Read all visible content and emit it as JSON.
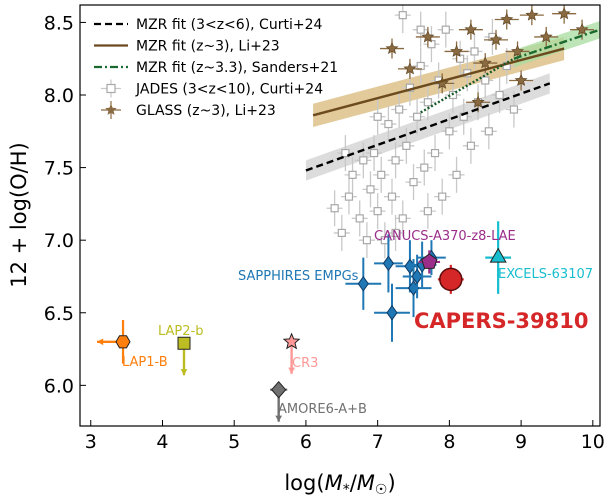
{
  "chart_data": {
    "type": "scatter",
    "xlabel": "log(M*/M☉)",
    "ylabel": "12 + log(O/H)",
    "xlim": [
      2.85,
      10.1
    ],
    "ylim": [
      5.72,
      8.62
    ],
    "xticks": [
      3,
      4,
      5,
      6,
      7,
      8,
      9,
      10
    ],
    "yticks": [
      6.0,
      6.5,
      7.0,
      7.5,
      8.0,
      8.5
    ],
    "xtick_labels": [
      "3",
      "4",
      "5",
      "6",
      "7",
      "8",
      "9",
      "10"
    ],
    "ytick_labels": [
      "6.0",
      "6.5",
      "7.0",
      "7.5",
      "8.0",
      "8.5"
    ],
    "grid": false,
    "legend_position": "top-left",
    "legend": [
      {
        "label": "MZR fit (3<z<6), Curti+24",
        "style": "dashed",
        "color": "#000000"
      },
      {
        "label": "MZR fit (z~3), Li+23",
        "style": "solid",
        "color": "#6b4a1e"
      },
      {
        "label": "MZR fit (z~3.3), Sanders+21",
        "style": "dashdot",
        "color": "#1a6a30"
      },
      {
        "label": "JADES (3<z<10), Curti+24",
        "style": "square",
        "color": "#b3b3b3"
      },
      {
        "label": "GLASS (z~3), Li+23",
        "style": "star",
        "color": "#8a6a40"
      }
    ],
    "fit_lines": [
      {
        "name": "curti",
        "x": [
          6.0,
          9.4
        ],
        "y": [
          7.48,
          8.08
        ],
        "band": 0.07,
        "color": "#000000",
        "band_color": "#d0d0d0"
      },
      {
        "name": "li",
        "x": [
          6.1,
          9.6
        ],
        "y": [
          7.86,
          8.32
        ],
        "band": 0.08,
        "color": "#6b4a1e",
        "band_color": "#d8b878"
      },
      {
        "name": "sanders_dotted",
        "x": [
          7.6,
          8.9
        ],
        "y": [
          7.88,
          8.25
        ],
        "color": "#1a5a2a"
      },
      {
        "name": "sanders_dashdot",
        "x": [
          8.9,
          10.1
        ],
        "y": [
          8.25,
          8.45
        ],
        "band": 0.06,
        "color": "#1a6a30",
        "band_color": "#a8dca0"
      }
    ],
    "jades": [
      {
        "x": 6.4,
        "y": 7.22
      },
      {
        "x": 6.5,
        "y": 7.05
      },
      {
        "x": 6.6,
        "y": 7.3
      },
      {
        "x": 6.65,
        "y": 7.45
      },
      {
        "x": 6.75,
        "y": 7.15
      },
      {
        "x": 6.8,
        "y": 7.55
      },
      {
        "x": 6.9,
        "y": 7.35
      },
      {
        "x": 6.95,
        "y": 7.6
      },
      {
        "x": 7.0,
        "y": 7.2
      },
      {
        "x": 7.05,
        "y": 7.45
      },
      {
        "x": 7.1,
        "y": 7.0
      },
      {
        "x": 7.15,
        "y": 7.8
      },
      {
        "x": 7.2,
        "y": 7.3
      },
      {
        "x": 7.25,
        "y": 7.55
      },
      {
        "x": 7.3,
        "y": 7.9
      },
      {
        "x": 7.35,
        "y": 7.15
      },
      {
        "x": 7.4,
        "y": 7.65
      },
      {
        "x": 7.45,
        "y": 8.05
      },
      {
        "x": 7.5,
        "y": 7.4
      },
      {
        "x": 7.55,
        "y": 7.85
      },
      {
        "x": 7.6,
        "y": 8.2
      },
      {
        "x": 7.65,
        "y": 7.5
      },
      {
        "x": 7.7,
        "y": 7.95
      },
      {
        "x": 7.75,
        "y": 8.35
      },
      {
        "x": 7.8,
        "y": 7.6
      },
      {
        "x": 7.85,
        "y": 8.1
      },
      {
        "x": 7.9,
        "y": 7.3
      },
      {
        "x": 7.95,
        "y": 8.45
      },
      {
        "x": 8.0,
        "y": 7.75
      },
      {
        "x": 8.05,
        "y": 8.0
      },
      {
        "x": 8.1,
        "y": 7.45
      },
      {
        "x": 8.15,
        "y": 8.25
      },
      {
        "x": 8.2,
        "y": 7.85
      },
      {
        "x": 8.25,
        "y": 8.15
      },
      {
        "x": 8.3,
        "y": 7.65
      },
      {
        "x": 8.35,
        "y": 8.3
      },
      {
        "x": 8.4,
        "y": 7.95
      },
      {
        "x": 8.5,
        "y": 8.1
      },
      {
        "x": 8.55,
        "y": 7.75
      },
      {
        "x": 8.6,
        "y": 8.4
      },
      {
        "x": 8.7,
        "y": 8.0
      },
      {
        "x": 8.8,
        "y": 8.2
      },
      {
        "x": 8.9,
        "y": 7.9
      },
      {
        "x": 7.0,
        "y": 7.85
      },
      {
        "x": 6.55,
        "y": 7.6
      },
      {
        "x": 7.35,
        "y": 8.55
      },
      {
        "x": 7.6,
        "y": 8.45
      },
      {
        "x": 6.85,
        "y": 7.0
      },
      {
        "x": 7.25,
        "y": 7.05
      },
      {
        "x": 7.7,
        "y": 7.2
      }
    ],
    "glass": [
      {
        "x": 7.2,
        "y": 8.32
      },
      {
        "x": 7.45,
        "y": 8.18
      },
      {
        "x": 7.7,
        "y": 8.4
      },
      {
        "x": 7.9,
        "y": 8.08
      },
      {
        "x": 8.1,
        "y": 8.3
      },
      {
        "x": 8.3,
        "y": 8.45
      },
      {
        "x": 8.5,
        "y": 8.22
      },
      {
        "x": 8.65,
        "y": 8.38
      },
      {
        "x": 8.8,
        "y": 8.52
      },
      {
        "x": 8.95,
        "y": 8.3
      },
      {
        "x": 9.15,
        "y": 8.55
      },
      {
        "x": 9.35,
        "y": 8.4
      },
      {
        "x": 9.6,
        "y": 8.56
      },
      {
        "x": 9.85,
        "y": 8.45
      },
      {
        "x": 9.0,
        "y": 8.1
      },
      {
        "x": 8.4,
        "y": 7.95
      }
    ],
    "sapphires_emps": [
      {
        "x": 6.8,
        "y": 6.7,
        "xerr": 0.25,
        "yerr": 0.18
      },
      {
        "x": 7.15,
        "y": 6.84,
        "xerr": 0.2,
        "yerr": 0.2
      },
      {
        "x": 7.2,
        "y": 6.5,
        "xerr": 0.25,
        "yerr": 0.2
      },
      {
        "x": 7.45,
        "y": 6.82,
        "xerr": 0.2,
        "yerr": 0.18
      },
      {
        "x": 7.5,
        "y": 6.67,
        "xerr": 0.25,
        "yerr": 0.2
      },
      {
        "x": 7.55,
        "y": 6.75,
        "xerr": 0.2,
        "yerr": 0.15
      },
      {
        "x": 7.62,
        "y": 6.83,
        "xerr": 0.2,
        "yerr": 0.16
      },
      {
        "x": 7.75,
        "y": 6.88,
        "xerr": 0.2,
        "yerr": 0.12
      }
    ],
    "labeled_points": [
      {
        "id": "capers",
        "label": "CAPERS-39810",
        "x": 8.02,
        "y": 6.73,
        "marker": "circle",
        "color": "#d62728",
        "xerr": 0.18,
        "yerr": 0.1
      },
      {
        "id": "canucs",
        "label": "CANUCS-A370-z8-LAE",
        "x": 7.72,
        "y": 6.85,
        "marker": "pentagon",
        "color": "#9b2d8a",
        "xerr": 0.15,
        "yerr": 0.08
      },
      {
        "id": "excels",
        "label": "EXCELS-63107",
        "x": 8.68,
        "y": 6.88,
        "marker": "triangle",
        "color": "#17becf",
        "xerr": 0.18,
        "yerr": 0.25
      },
      {
        "id": "lap1b",
        "label": "LAP1-B",
        "x": 3.45,
        "y": 6.3,
        "marker": "hexagon",
        "color": "#ff7f0e",
        "upper_limit_x": true,
        "yerr": 0.15
      },
      {
        "id": "lap2b",
        "label": "LAP2-b",
        "x": 4.3,
        "y": 6.29,
        "marker": "square",
        "color": "#bcbd22",
        "upper_limit_y": true
      },
      {
        "id": "cr3",
        "label": "CR3",
        "x": 5.8,
        "y": 6.3,
        "marker": "star",
        "color": "#ff9896",
        "upper_limit_y": true
      },
      {
        "id": "amore",
        "label": "AMORE6-A+B",
        "x": 5.62,
        "y": 5.97,
        "marker": "diamond",
        "color": "#707070",
        "upper_limit_y": true,
        "xerr": 0.12
      }
    ],
    "annotations": [
      {
        "text": "SAPPHIRES EMPGs",
        "color": "#1f77b4"
      },
      {
        "text": "CANUCS-A370-z8-LAE",
        "color": "#9b2d8a"
      },
      {
        "text": "EXCELS-63107",
        "color": "#17becf"
      },
      {
        "text": "CAPERS-39810",
        "color": "#d62728"
      },
      {
        "text": "LAP1-B",
        "color": "#ff7f0e"
      },
      {
        "text": "LAP2-b",
        "color": "#bcbd22"
      },
      {
        "text": "CR3",
        "color": "#ff9896"
      },
      {
        "text": "AMORE6-A+B",
        "color": "#707070"
      }
    ]
  }
}
